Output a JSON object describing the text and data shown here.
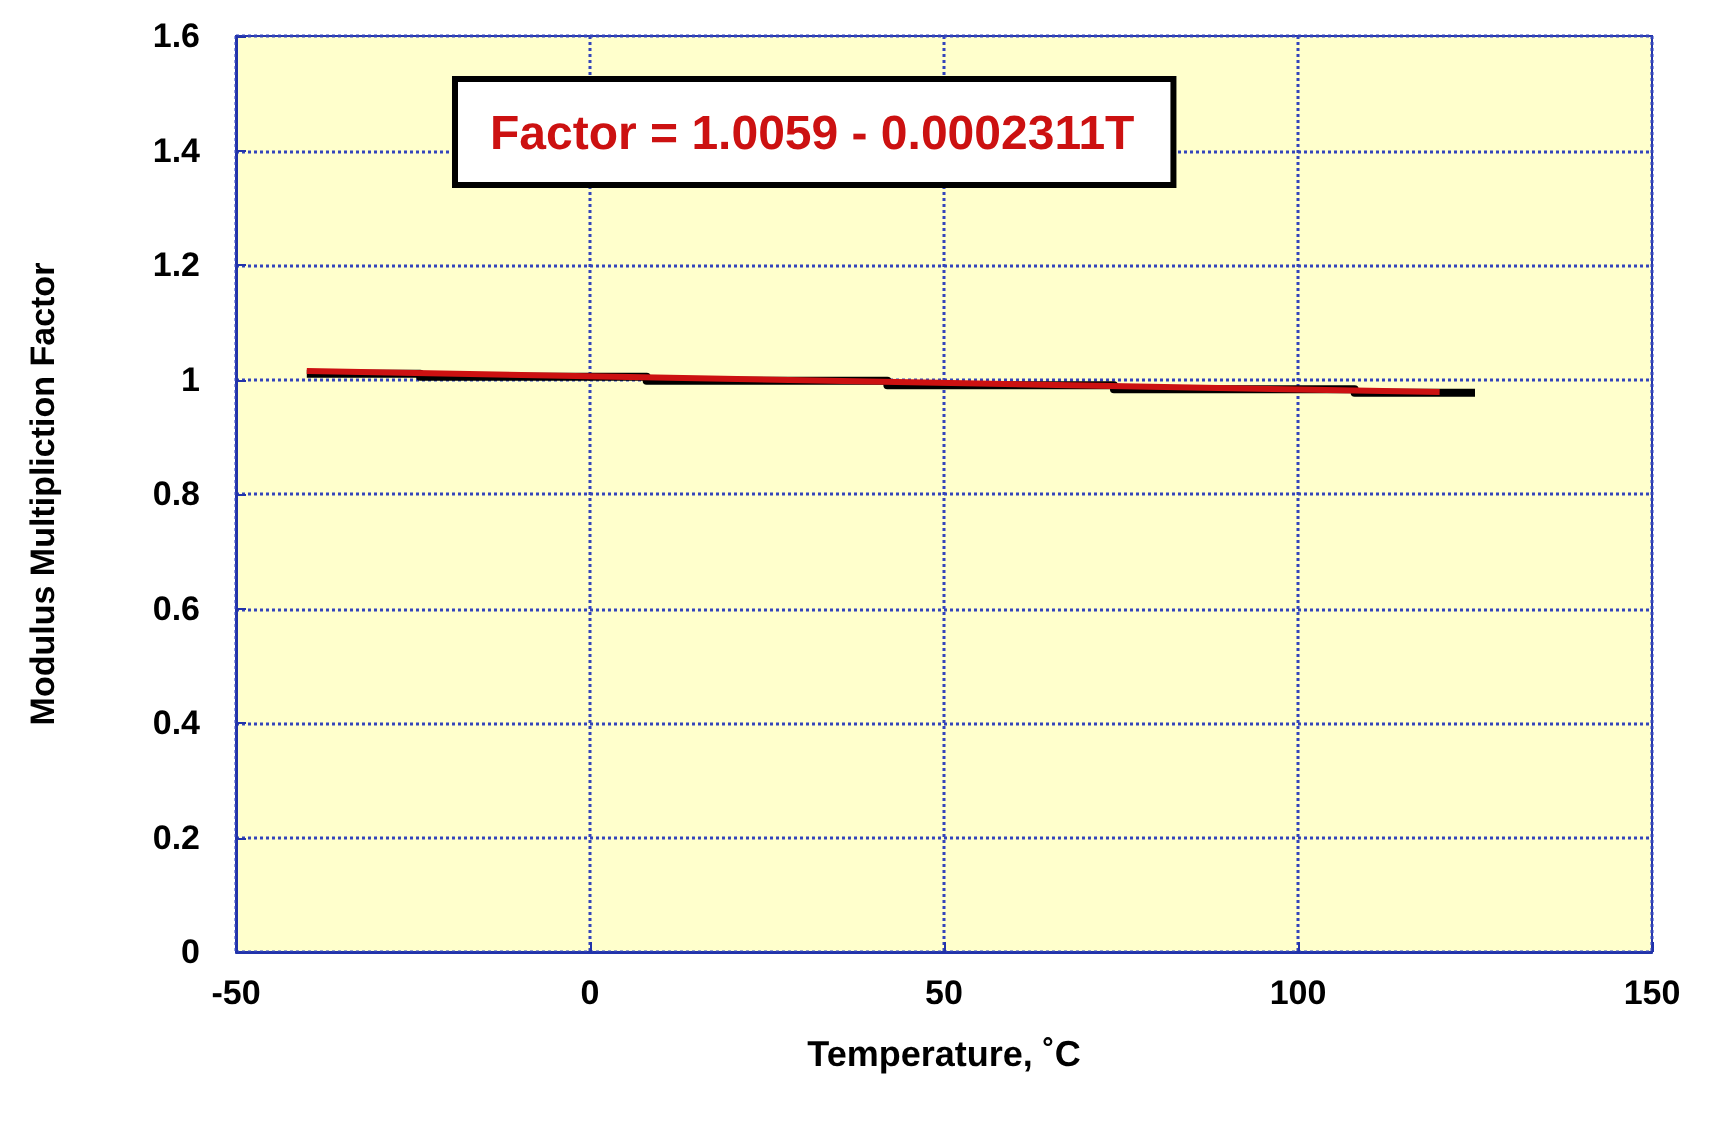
{
  "chart_data": {
    "type": "line",
    "xlabel": "Temperature, ˚C",
    "ylabel": "Modulus Multipliction Factor",
    "annotations": [
      "Factor = 1.0059 - 0.0002311T"
    ],
    "series": [
      {
        "type": "step",
        "color": "#000000",
        "x": [
          -40,
          -24,
          8,
          42,
          74,
          108,
          125
        ],
        "values": [
          1.01,
          1.005,
          0.998,
          0.99,
          0.983,
          0.977,
          0.977
        ]
      },
      {
        "color": "#cc1111",
        "x": [
          -40,
          120
        ],
        "values": [
          1.015,
          0.978
        ]
      }
    ],
    "xlim": [
      -50,
      150
    ],
    "xticks": [
      -50,
      0,
      50,
      100,
      150
    ],
    "ylim": [
      0,
      1.6
    ],
    "yticks": [
      0,
      0.2,
      0.4,
      0.6,
      0.8,
      1,
      1.2,
      1.4,
      1.6
    ],
    "grid": true,
    "marker": "none",
    "line_style": "solid"
  }
}
